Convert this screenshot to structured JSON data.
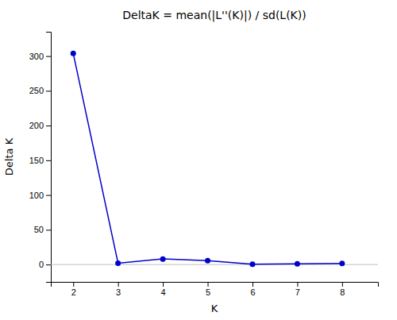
{
  "chart_data": {
    "type": "line",
    "title": "DeltaK = mean(|L''(K)|) / sd(L(K))",
    "xlabel": "K",
    "ylabel": "Delta K",
    "x": [
      2,
      3,
      4,
      5,
      6,
      7,
      8
    ],
    "values": [
      304.0,
      2.0,
      8.0,
      5.5,
      0.5,
      1.0,
      1.5
    ],
    "color": "#0000cc",
    "marker": "circle",
    "grid": false,
    "hlines": [
      {
        "value": 0,
        "color": "#c0c0c0"
      }
    ],
    "xlim": [
      1.5,
      8.8
    ],
    "ylim": [
      -25,
      335
    ],
    "xticks": [
      2,
      3,
      4,
      5,
      6,
      7,
      8
    ],
    "yticks": [
      0,
      50,
      100,
      150,
      200,
      250,
      300
    ]
  }
}
